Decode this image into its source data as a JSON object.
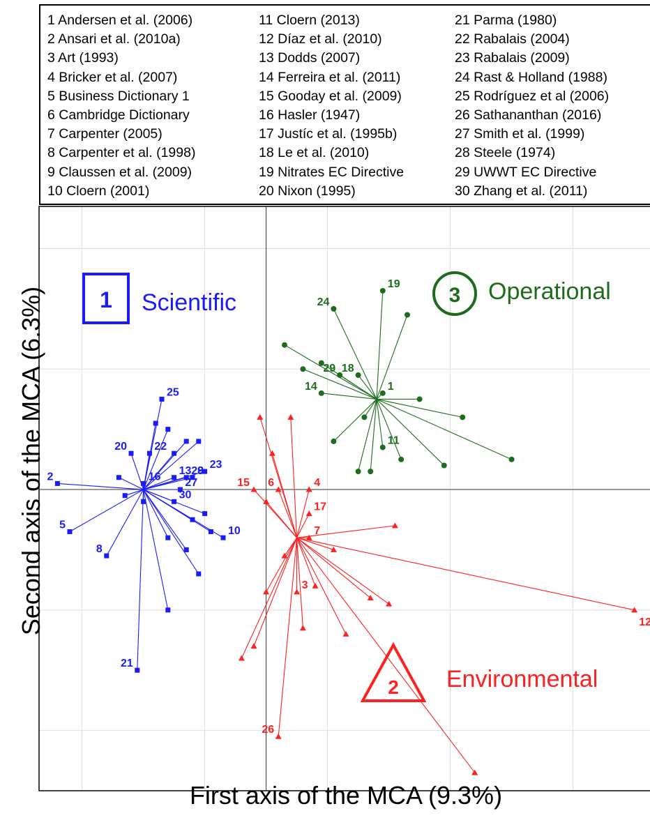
{
  "legend": {
    "columns": [
      [
        "1 Andersen et al. (2006)",
        "2 Ansari et al. (2010a)",
        "3 Art (1993)",
        "4 Bricker et al. (2007)",
        "5 Business Dictionary 1",
        "6 Cambridge Dictionary",
        "7 Carpenter (2005)",
        "8 Carpenter et al. (1998)",
        "9 Claussen et al. (2009)",
        "10 Cloern (2001)"
      ],
      [
        "11 Cloern (2013)",
        "12 Díaz et al. (2010)",
        "13 Dodds (2007)",
        "14 Ferreira et al. (2011)",
        "15 Gooday et al. (2009)",
        "16 Hasler (1947)",
        "17 Justíc et al. (1995b)",
        "18 Le et al. (2010)",
        "19 Nitrates EC Directive",
        "20 Nixon (1995)"
      ],
      [
        "21 Parma (1980)",
        "22 Rabalais (2004)",
        "23 Rabalais (2009)",
        "24 Rast & Holland (1988)",
        "25 Rodríguez et al (2006)",
        "26 Sathananthan (2016)",
        "27 Smith et al. (1999)",
        "28 Steele (1974)",
        "29 UWWT EC Directive",
        "30 Zhang et al. (2011)"
      ]
    ]
  },
  "chart_data": {
    "type": "scatter",
    "xlabel": "First axis of the MCA (9.3%)",
    "ylabel": "Second axis of the MCA (6.3%)",
    "xlim": [
      -3.7,
      6.3
    ],
    "ylim": [
      -5.0,
      4.7
    ],
    "grid": true,
    "clusters": [
      {
        "id": "1",
        "name": "Scientific",
        "marker": "square",
        "color": "#1a1aff",
        "center": [
          -2.0,
          0.0
        ],
        "points": [
          {
            "x": -3.4,
            "y": 0.1,
            "label": "2"
          },
          {
            "x": -3.2,
            "y": -0.7,
            "label": "5"
          },
          {
            "x": -2.6,
            "y": -1.1,
            "label": "8"
          },
          {
            "x": -2.1,
            "y": -3.0,
            "label": "21"
          },
          {
            "x": -2.0,
            "y": 0.1,
            "label": "16"
          },
          {
            "x": -2.2,
            "y": 0.6,
            "label": "20"
          },
          {
            "x": -1.9,
            "y": 0.6,
            "label": "22"
          },
          {
            "x": -1.7,
            "y": 1.5,
            "label": "25"
          },
          {
            "x": -1.3,
            "y": 0.2,
            "label": "28"
          },
          {
            "x": -1.0,
            "y": 0.3,
            "label": "23"
          },
          {
            "x": -0.7,
            "y": -0.8,
            "label": "10"
          },
          {
            "x": -1.5,
            "y": -0.2,
            "label": "30"
          },
          {
            "x": -1.5,
            "y": 0.2,
            "label": "13"
          },
          {
            "x": -1.2,
            "y": 0.2,
            "label": "9"
          },
          {
            "x": -1.4,
            "y": 0.0,
            "label": "27"
          },
          {
            "x": -1.8,
            "y": 1.1,
            "label": ""
          },
          {
            "x": -1.6,
            "y": 1.0,
            "label": ""
          },
          {
            "x": -1.3,
            "y": 0.8,
            "label": ""
          },
          {
            "x": -1.1,
            "y": 0.8,
            "label": ""
          },
          {
            "x": -1.5,
            "y": 0.6,
            "label": ""
          },
          {
            "x": -2.4,
            "y": 0.2,
            "label": ""
          },
          {
            "x": -2.3,
            "y": -0.1,
            "label": ""
          },
          {
            "x": -2.0,
            "y": -0.2,
            "label": ""
          },
          {
            "x": -1.6,
            "y": -0.8,
            "label": ""
          },
          {
            "x": -1.2,
            "y": -0.5,
            "label": ""
          },
          {
            "x": -1.0,
            "y": -0.4,
            "label": ""
          },
          {
            "x": -0.9,
            "y": -0.7,
            "label": ""
          },
          {
            "x": -1.3,
            "y": -1.0,
            "label": ""
          },
          {
            "x": -1.1,
            "y": -1.4,
            "label": ""
          },
          {
            "x": -1.6,
            "y": -2.0,
            "label": ""
          }
        ]
      },
      {
        "id": "2",
        "name": "Environmental",
        "marker": "triangle",
        "color": "#ff2020",
        "center": [
          0.5,
          -0.8
        ],
        "points": [
          {
            "x": -0.2,
            "y": 0.0,
            "label": "15"
          },
          {
            "x": 0.2,
            "y": 0.0,
            "label": "6"
          },
          {
            "x": 0.7,
            "y": 0.0,
            "label": "4"
          },
          {
            "x": 0.7,
            "y": -0.4,
            "label": "17"
          },
          {
            "x": 0.7,
            "y": -0.8,
            "label": "7"
          },
          {
            "x": 0.5,
            "y": -1.7,
            "label": "3"
          },
          {
            "x": 6.0,
            "y": -2.0,
            "label": "12"
          },
          {
            "x": 0.2,
            "y": -4.1,
            "label": "26"
          },
          {
            "x": -0.1,
            "y": 1.2,
            "label": ""
          },
          {
            "x": 0.1,
            "y": 0.6,
            "label": ""
          },
          {
            "x": 0.4,
            "y": 1.2,
            "label": ""
          },
          {
            "x": 0.0,
            "y": -0.2,
            "label": ""
          },
          {
            "x": 2.1,
            "y": -0.6,
            "label": ""
          },
          {
            "x": 1.1,
            "y": -1.0,
            "label": ""
          },
          {
            "x": 0.8,
            "y": -1.6,
            "label": ""
          },
          {
            "x": 2.0,
            "y": -1.9,
            "label": ""
          },
          {
            "x": 1.7,
            "y": -1.8,
            "label": ""
          },
          {
            "x": 0.6,
            "y": -2.3,
            "label": ""
          },
          {
            "x": 1.3,
            "y": -2.4,
            "label": ""
          },
          {
            "x": 3.4,
            "y": -4.7,
            "label": ""
          },
          {
            "x": -0.2,
            "y": -2.6,
            "label": ""
          },
          {
            "x": -0.4,
            "y": -2.8,
            "label": ""
          },
          {
            "x": 0.0,
            "y": -1.7,
            "label": ""
          },
          {
            "x": 0.3,
            "y": -1.1,
            "label": ""
          }
        ]
      },
      {
        "id": "3",
        "name": "Operational",
        "marker": "circle",
        "color": "#1e6b1e",
        "center": [
          1.8,
          1.5
        ],
        "points": [
          {
            "x": 1.9,
            "y": 1.6,
            "label": "1"
          },
          {
            "x": 1.5,
            "y": 1.9,
            "label": "18"
          },
          {
            "x": 1.2,
            "y": 1.9,
            "label": "29"
          },
          {
            "x": 0.9,
            "y": 1.6,
            "label": "14"
          },
          {
            "x": 1.9,
            "y": 0.7,
            "label": "11"
          },
          {
            "x": 1.9,
            "y": 3.3,
            "label": "19"
          },
          {
            "x": 1.1,
            "y": 3.0,
            "label": "24"
          },
          {
            "x": 2.3,
            "y": 2.9,
            "label": ""
          },
          {
            "x": 0.3,
            "y": 2.4,
            "label": ""
          },
          {
            "x": 0.6,
            "y": 2.0,
            "label": ""
          },
          {
            "x": 0.9,
            "y": 2.1,
            "label": ""
          },
          {
            "x": 2.5,
            "y": 1.5,
            "label": ""
          },
          {
            "x": 3.2,
            "y": 1.2,
            "label": ""
          },
          {
            "x": 4.0,
            "y": 0.5,
            "label": ""
          },
          {
            "x": 2.9,
            "y": 0.4,
            "label": ""
          },
          {
            "x": 2.2,
            "y": 0.5,
            "label": ""
          },
          {
            "x": 1.7,
            "y": 0.3,
            "label": ""
          },
          {
            "x": 1.5,
            "y": 0.3,
            "label": ""
          },
          {
            "x": 1.1,
            "y": 0.8,
            "label": ""
          },
          {
            "x": 1.6,
            "y": 1.2,
            "label": ""
          }
        ]
      }
    ]
  }
}
